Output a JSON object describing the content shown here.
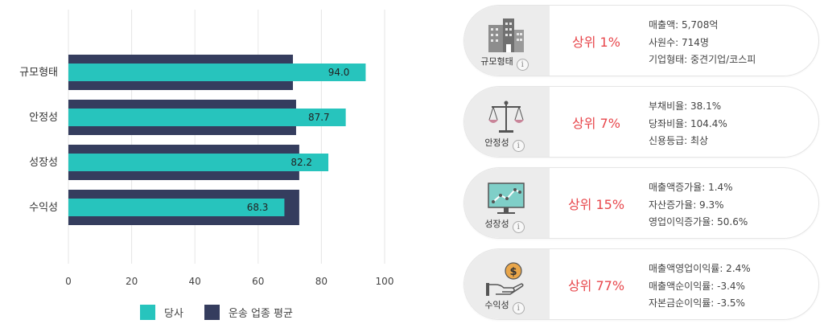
{
  "chart_data": {
    "type": "bar",
    "orientation": "horizontal",
    "categories": [
      "규모형태",
      "안정성",
      "성장성",
      "수익성"
    ],
    "series": [
      {
        "name": "당사",
        "values": [
          94.0,
          87.7,
          82.2,
          68.3
        ],
        "color": "#27c4bd"
      },
      {
        "name": "운송 업종 평균",
        "values": [
          71,
          72,
          73,
          73
        ],
        "color": "#353d5e"
      }
    ],
    "data_labels": [
      "94.0",
      "87.7",
      "82.2",
      "68.3"
    ],
    "xlim": [
      0,
      100
    ],
    "xticks": [
      0,
      20,
      40,
      60,
      80,
      100
    ],
    "grid": true,
    "legend_position": "bottom"
  },
  "legend": {
    "items": [
      {
        "label": "당사",
        "color": "#27c4bd"
      },
      {
        "label": "운송 업종 평균",
        "color": "#353d5e"
      }
    ]
  },
  "cards": [
    {
      "label": "규모형태",
      "icon": "buildings-icon",
      "rank": "상위 1%",
      "details": [
        "매출액: 5,708억",
        "사원수: 714명",
        "기업형태: 중견기업/코스피"
      ]
    },
    {
      "label": "안정성",
      "icon": "balance-scale-icon",
      "rank": "상위 7%",
      "details": [
        "부채비율: 38.1%",
        "당좌비율: 104.4%",
        "신용등급: 최상"
      ]
    },
    {
      "label": "성장성",
      "icon": "growth-monitor-icon",
      "rank": "상위 15%",
      "details": [
        "매출액증가율: 1.4%",
        "자산증가율: 9.3%",
        "영업이익증가율: 50.6%"
      ]
    },
    {
      "label": "수익성",
      "icon": "money-hand-icon",
      "rank": "상위 77%",
      "details": [
        "매출액영업이익률: 2.4%",
        "매출액순이익률: -3.4%",
        "자본금순이익률: -3.5%"
      ]
    }
  ],
  "info_glyph": "i",
  "colors": {
    "accent": "#27c4bd",
    "industry": "#353d5e",
    "rank": "#e8474c"
  }
}
